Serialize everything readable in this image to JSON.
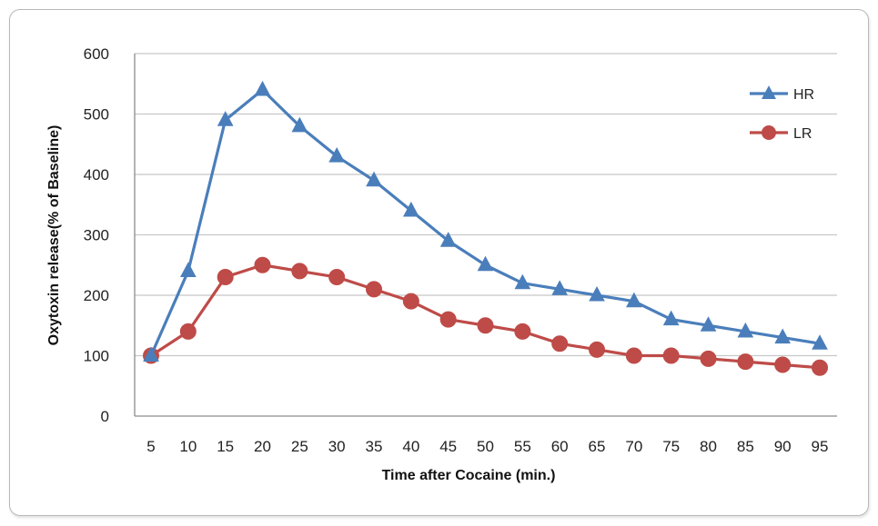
{
  "chart_data": {
    "type": "line",
    "title": "",
    "xlabel": "Time after Cocaine (min.)",
    "ylabel": "Oxytoxin release(% of Baseline)",
    "categories": [
      "5",
      "10",
      "15",
      "20",
      "25",
      "30",
      "35",
      "40",
      "45",
      "50",
      "55",
      "60",
      "65",
      "70",
      "75",
      "80",
      "85",
      "90",
      "95"
    ],
    "ylim": [
      0,
      600
    ],
    "yticks": [
      0,
      100,
      200,
      300,
      400,
      500,
      600
    ],
    "grid": "horizontal",
    "legend_position": "top-right",
    "series": [
      {
        "name": "HR",
        "marker": "triangle",
        "color": "#4a7ebb",
        "values": [
          100,
          240,
          490,
          540,
          480,
          430,
          390,
          340,
          290,
          250,
          220,
          210,
          200,
          190,
          160,
          150,
          140,
          130,
          120
        ]
      },
      {
        "name": "LR",
        "marker": "circle",
        "color": "#be4b48",
        "values": [
          100,
          140,
          230,
          250,
          240,
          230,
          210,
          190,
          160,
          150,
          140,
          120,
          110,
          100,
          100,
          95,
          90,
          85,
          80
        ]
      }
    ]
  }
}
